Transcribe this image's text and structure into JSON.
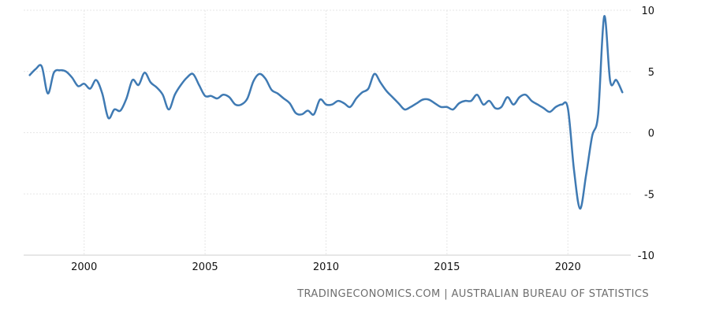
{
  "source": "TRADINGECONOMICS.COM | AUSTRALIAN BUREAU OF STATISTICS",
  "chart_data": {
    "type": "line",
    "title": "",
    "xlabel": "",
    "ylabel": "",
    "xlim": [
      1997.5,
      2022.6
    ],
    "ylim": [
      -10,
      10
    ],
    "x_ticks": [
      2000,
      2005,
      2010,
      2015,
      2020
    ],
    "y_ticks": [
      10,
      5,
      0,
      -5,
      -10
    ],
    "grid": true,
    "legend": "none",
    "line_color": "#3f7ab3",
    "series": [
      {
        "x": [
          1997.75,
          1998.0,
          1998.25,
          1998.5,
          1998.75,
          1999.0,
          1999.25,
          1999.5,
          1999.75,
          2000.0,
          2000.25,
          2000.5,
          2000.75,
          2001.0,
          2001.25,
          2001.5,
          2001.75,
          2002.0,
          2002.25,
          2002.5,
          2002.75,
          2003.0,
          2003.25,
          2003.5,
          2003.75,
          2004.0,
          2004.25,
          2004.5,
          2004.75,
          2005.0,
          2005.25,
          2005.5,
          2005.75,
          2006.0,
          2006.25,
          2006.5,
          2006.75,
          2007.0,
          2007.25,
          2007.5,
          2007.75,
          2008.0,
          2008.25,
          2008.5,
          2008.75,
          2009.0,
          2009.25,
          2009.5,
          2009.75,
          2010.0,
          2010.25,
          2010.5,
          2010.75,
          2011.0,
          2011.25,
          2011.5,
          2011.75,
          2012.0,
          2012.25,
          2012.5,
          2012.75,
          2013.0,
          2013.25,
          2013.5,
          2013.75,
          2014.0,
          2014.25,
          2014.5,
          2014.75,
          2015.0,
          2015.25,
          2015.5,
          2015.75,
          2016.0,
          2016.25,
          2016.5,
          2016.75,
          2017.0,
          2017.25,
          2017.5,
          2017.75,
          2018.0,
          2018.25,
          2018.5,
          2018.75,
          2019.0,
          2019.25,
          2019.5,
          2019.75,
          2020.0,
          2020.25,
          2020.5,
          2020.75,
          2021.0,
          2021.25,
          2021.5,
          2021.75,
          2022.0,
          2022.25
        ],
        "values": [
          4.7,
          5.2,
          5.4,
          3.2,
          4.9,
          5.1,
          5.0,
          4.5,
          3.8,
          4.0,
          3.6,
          4.3,
          3.2,
          1.2,
          1.9,
          1.8,
          2.8,
          4.3,
          3.9,
          4.9,
          4.1,
          3.7,
          3.1,
          1.9,
          3.1,
          3.9,
          4.5,
          4.8,
          3.9,
          3.0,
          3.0,
          2.8,
          3.1,
          2.9,
          2.3,
          2.3,
          2.8,
          4.2,
          4.8,
          4.4,
          3.5,
          3.2,
          2.8,
          2.4,
          1.6,
          1.5,
          1.8,
          1.5,
          2.7,
          2.3,
          2.3,
          2.6,
          2.4,
          2.1,
          2.8,
          3.3,
          3.6,
          4.8,
          4.1,
          3.4,
          2.9,
          2.4,
          1.9,
          2.1,
          2.4,
          2.7,
          2.7,
          2.4,
          2.1,
          2.1,
          1.9,
          2.4,
          2.6,
          2.6,
          3.1,
          2.3,
          2.6,
          2.0,
          2.1,
          2.9,
          2.3,
          2.9,
          3.1,
          2.6,
          2.3,
          2.0,
          1.7,
          2.1,
          2.3,
          2.0,
          -3.0,
          -6.2,
          -3.5,
          -0.3,
          1.5,
          9.5,
          4.2,
          4.3,
          3.3
        ]
      }
    ]
  }
}
